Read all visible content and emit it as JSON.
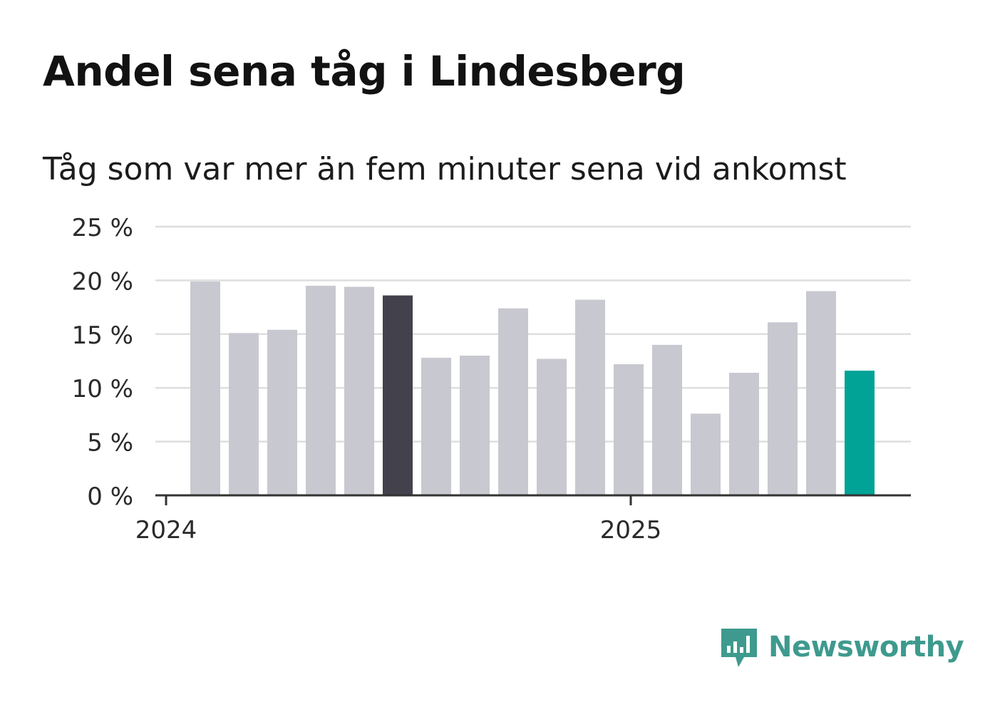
{
  "title": "Andel sena tåg i Lindesberg",
  "subtitle": "Tåg som var mer än fem minuter sena vid ankomst",
  "logo_text": "Newsworthy",
  "colors": {
    "bar_default": "#c8c8d0",
    "bar_highlight_dark": "#42414c",
    "bar_highlight_accent": "#00a396",
    "gridline": "#dedede",
    "axis": "#333333",
    "logo": "#3e9a8e"
  },
  "chart_data": {
    "type": "bar",
    "y_ticks": [
      "0 %",
      "5 %",
      "10 %",
      "15 %",
      "20 %",
      "25 %"
    ],
    "x_ticks": [
      "2024",
      "2025"
    ],
    "ylim": [
      0,
      25
    ],
    "grid": true,
    "values": [
      19.9,
      15.1,
      15.4,
      19.5,
      19.4,
      18.6,
      12.8,
      13.0,
      17.4,
      12.7,
      18.2,
      12.2,
      14.0,
      7.6,
      11.4,
      16.1,
      19.0,
      11.6
    ],
    "highlight": {
      "5": "dark",
      "17": "accent"
    }
  }
}
